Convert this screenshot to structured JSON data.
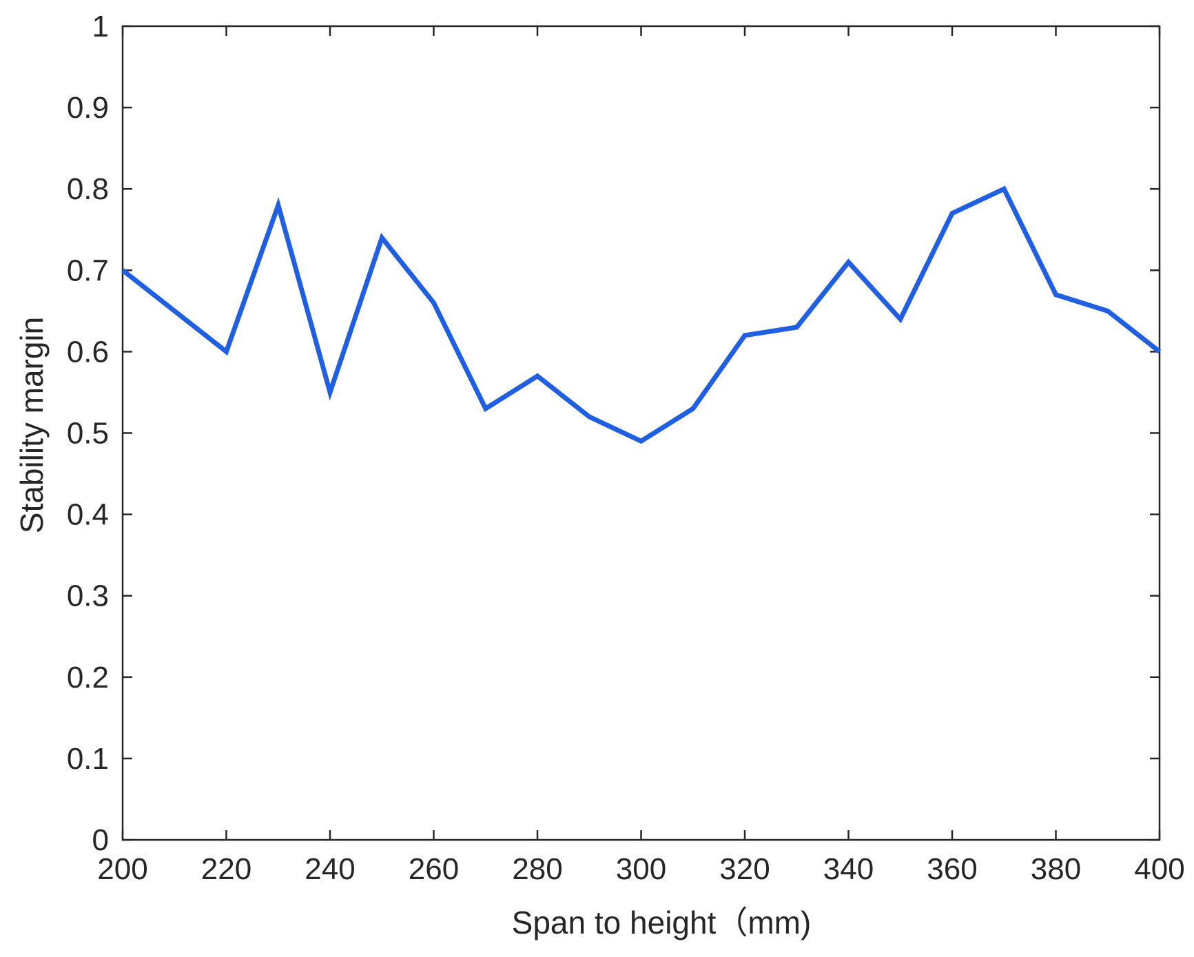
{
  "chart_data": {
    "type": "line",
    "title": "",
    "xlabel": "Span to height（mm)",
    "ylabel": "Stability margin",
    "xlim": [
      200,
      400
    ],
    "ylim": [
      0,
      1
    ],
    "grid": false,
    "x_ticks": [
      "200",
      "220",
      "240",
      "260",
      "280",
      "300",
      "320",
      "340",
      "360",
      "380",
      "400"
    ],
    "y_ticks": [
      "0",
      "0.1",
      "0.2",
      "0.3",
      "0.4",
      "0.5",
      "0.6",
      "0.7",
      "0.8",
      "0.9",
      "1"
    ],
    "series": [
      {
        "color": "#1f5fe0",
        "x": [
          200,
          220,
          230,
          240,
          250,
          260,
          270,
          280,
          290,
          300,
          310,
          320,
          330,
          340,
          350,
          360,
          370,
          380,
          390,
          400
        ],
        "y": [
          0.7,
          0.6,
          0.78,
          0.55,
          0.74,
          0.66,
          0.53,
          0.57,
          0.52,
          0.49,
          0.53,
          0.62,
          0.63,
          0.71,
          0.64,
          0.77,
          0.8,
          0.67,
          0.65,
          0.6
        ]
      }
    ]
  }
}
